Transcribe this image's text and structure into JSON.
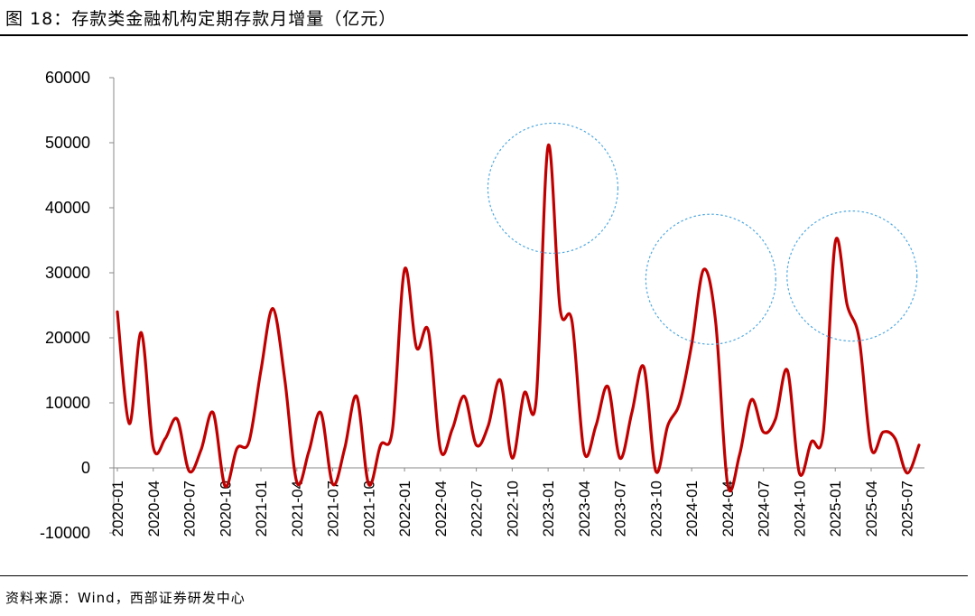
{
  "header": {
    "title": "图 18：存款类金融机构定期存款月增量（亿元）"
  },
  "footer": {
    "source": "资料来源：Wind，西部证券研发中心"
  },
  "chart_data": {
    "type": "line",
    "title": "存款类金融机构定期存款月增量（亿元）",
    "xlabel": "",
    "ylabel": "",
    "ylim": [
      -10000,
      60000
    ],
    "yticks": [
      "60000",
      "50000",
      "40000",
      "30000",
      "20000",
      "10000",
      "0",
      "-10000"
    ],
    "ytick_values": [
      60000,
      50000,
      40000,
      30000,
      20000,
      10000,
      0,
      -10000
    ],
    "line_color": "#c00000",
    "highlight_color": "#4fa8e0",
    "xtick_labels": [
      "2020-01",
      "2020-04",
      "2020-07",
      "2020-10",
      "2021-01",
      "2021-04",
      "2021-07",
      "2021-10",
      "2022-01",
      "2022-04",
      "2022-07",
      "2022-10",
      "2023-01",
      "2023-04",
      "2023-07",
      "2023-10",
      "2024-01",
      "2024-04",
      "2024-07",
      "2024-10",
      "2025-01",
      "2025-04",
      "2025-07"
    ],
    "xtick_indices": [
      0,
      3,
      6,
      9,
      12,
      15,
      18,
      21,
      24,
      27,
      30,
      33,
      36,
      39,
      42,
      45,
      48,
      51,
      54,
      57,
      60,
      63,
      66
    ],
    "series": [
      {
        "name": "定期存款月增量",
        "values": [
          24000,
          6800,
          20800,
          3200,
          4500,
          7500,
          -500,
          2800,
          8500,
          -2800,
          3000,
          4000,
          15000,
          24500,
          13500,
          -2200,
          2500,
          8500,
          -2500,
          3000,
          11000,
          -2500,
          3500,
          6000,
          30500,
          18500,
          21000,
          2800,
          6000,
          11000,
          3500,
          6500,
          13500,
          1500,
          11500,
          10500,
          49500,
          24500,
          22500,
          2500,
          6500,
          12500,
          1500,
          8500,
          15500,
          -500,
          6500,
          10000,
          19000,
          30500,
          22500,
          -2500,
          2000,
          10500,
          5500,
          7500,
          15000,
          -800,
          4000,
          5500,
          34700,
          25000,
          19800,
          3000,
          5500,
          4500,
          -800,
          3500
        ]
      }
    ],
    "highlights": [
      {
        "label": "2023-01 peak",
        "center_index": 36.4,
        "center_value": 43000,
        "radius_value": 10000
      },
      {
        "label": "2024-03 peak",
        "center_index": 49.6,
        "center_value": 29000,
        "radius_value": 10000
      },
      {
        "label": "2025-02 peak",
        "center_index": 61.4,
        "center_value": 29500,
        "radius_value": 10000
      }
    ]
  }
}
